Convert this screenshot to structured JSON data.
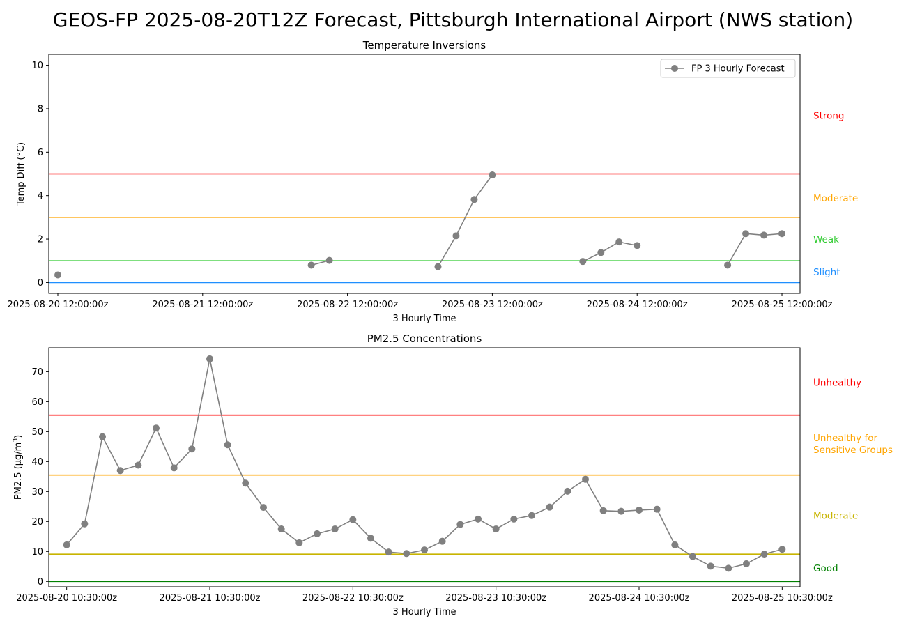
{
  "figure": {
    "suptitle": "GEOS-FP 2025-08-20T12Z Forecast, Pittsburgh International Airport (NWS station)"
  },
  "chart_data": [
    {
      "type": "line",
      "title": "Temperature Inversions",
      "xlabel": "3 Hourly Time",
      "ylabel": "Temp Diff (°C)",
      "ylim": [
        -0.5,
        10.5
      ],
      "yticks": [
        0,
        2,
        4,
        6,
        8,
        10
      ],
      "x_unit": "3-hour steps from 2025-08-20 12:00:00z",
      "xlim": [
        -0.5,
        41.0
      ],
      "xticks": [
        {
          "x": 0,
          "label": "2025-08-20 12:00:00z"
        },
        {
          "x": 8,
          "label": "2025-08-21 12:00:00z"
        },
        {
          "x": 16,
          "label": "2025-08-22 12:00:00z"
        },
        {
          "x": 24,
          "label": "2025-08-23 12:00:00z"
        },
        {
          "x": 32,
          "label": "2025-08-24 12:00:00z"
        },
        {
          "x": 40,
          "label": "2025-08-25 12:00:00z"
        }
      ],
      "legend": {
        "position": "top-right",
        "label": "FP 3 Hourly Forecast"
      },
      "series": [
        {
          "name": "FP 3 Hourly Forecast",
          "color": "#808080",
          "x": [
            0,
            1,
            2,
            3,
            4,
            5,
            6,
            7,
            8,
            9,
            10,
            11,
            12,
            13,
            14,
            15,
            16,
            17,
            18,
            19,
            20,
            21,
            22,
            23,
            24,
            25,
            26,
            27,
            28,
            29,
            30,
            31,
            32,
            33,
            34,
            35,
            36,
            37,
            38,
            39,
            40
          ],
          "y": [
            0.35,
            null,
            null,
            null,
            null,
            null,
            null,
            null,
            null,
            null,
            null,
            null,
            null,
            null,
            0.8,
            1.02,
            null,
            null,
            null,
            null,
            null,
            0.73,
            2.15,
            3.82,
            4.95,
            null,
            null,
            null,
            null,
            0.97,
            1.38,
            1.87,
            1.7,
            null,
            null,
            null,
            null,
            0.8,
            2.25,
            2.18,
            2.25
          ]
        }
      ],
      "thresholds": [
        {
          "value": 0,
          "label": "Slight",
          "color": "#1f8fff",
          "label_value": 0.5
        },
        {
          "value": 1,
          "label": "Weak",
          "color": "#33cc33",
          "label_value": 2.0
        },
        {
          "value": 3,
          "label": "Moderate",
          "color": "#ffa500",
          "label_value": 3.9
        },
        {
          "value": 5,
          "label": "Strong",
          "color": "#ff0000",
          "label_value": 7.7
        }
      ]
    },
    {
      "type": "line",
      "title": "PM2.5 Concentrations",
      "xlabel": "3 Hourly Time",
      "ylabel": "PM2.5 (μg/m³)",
      "ylabel_main": "PM2.5 (μg/m",
      "ylabel_sup": "3",
      "ylabel_close": ")",
      "ylim": [
        -1.8,
        78
      ],
      "yticks": [
        0,
        10,
        20,
        30,
        40,
        50,
        60,
        70
      ],
      "x_unit": "3-hour steps from 2025-08-20 10:30:00z",
      "xlim": [
        -1.0,
        41.0
      ],
      "xticks": [
        {
          "x": 0,
          "label": "2025-08-20 10:30:00z"
        },
        {
          "x": 8,
          "label": "2025-08-21 10:30:00z"
        },
        {
          "x": 16,
          "label": "2025-08-22 10:30:00z"
        },
        {
          "x": 24,
          "label": "2025-08-23 10:30:00z"
        },
        {
          "x": 32,
          "label": "2025-08-24 10:30:00z"
        },
        {
          "x": 40,
          "label": "2025-08-25 10:30:00z"
        }
      ],
      "series": [
        {
          "name": "",
          "color": "#808080",
          "x": [
            0,
            1,
            2,
            3,
            4,
            5,
            6,
            7,
            8,
            9,
            10,
            11,
            12,
            13,
            14,
            15,
            16,
            17,
            18,
            19,
            20,
            21,
            22,
            23,
            24,
            25,
            26,
            27,
            28,
            29,
            30,
            31,
            32,
            33,
            34,
            35,
            36,
            37,
            38,
            39,
            40
          ],
          "y": [
            12.2,
            19.2,
            48.3,
            37.0,
            38.8,
            51.2,
            37.9,
            44.2,
            74.3,
            45.6,
            32.8,
            24.7,
            17.5,
            12.9,
            15.9,
            17.5,
            20.6,
            14.4,
            9.8,
            9.3,
            10.5,
            13.4,
            19.0,
            20.8,
            17.5,
            20.8,
            22.0,
            24.8,
            30.1,
            34.1,
            23.6,
            23.4,
            23.8,
            24.1,
            12.2,
            8.3,
            5.1,
            4.4,
            5.9,
            9.1,
            10.7
          ]
        }
      ],
      "thresholds": [
        {
          "value": 0,
          "label": "Good",
          "color": "#008000",
          "label_value": 4.5
        },
        {
          "value": 9.1,
          "label": "Moderate",
          "color": "#c8b400",
          "label_value": 22.0
        },
        {
          "value": 35.5,
          "label": "Unhealthy for Sensitive Groups",
          "label_lines": [
            "Unhealthy for",
            "Sensitive Groups"
          ],
          "color": "#ffa500",
          "label_value": 46.0
        },
        {
          "value": 55.5,
          "label": "Unhealthy",
          "color": "#ff0000",
          "label_value": 66.5
        }
      ]
    }
  ]
}
